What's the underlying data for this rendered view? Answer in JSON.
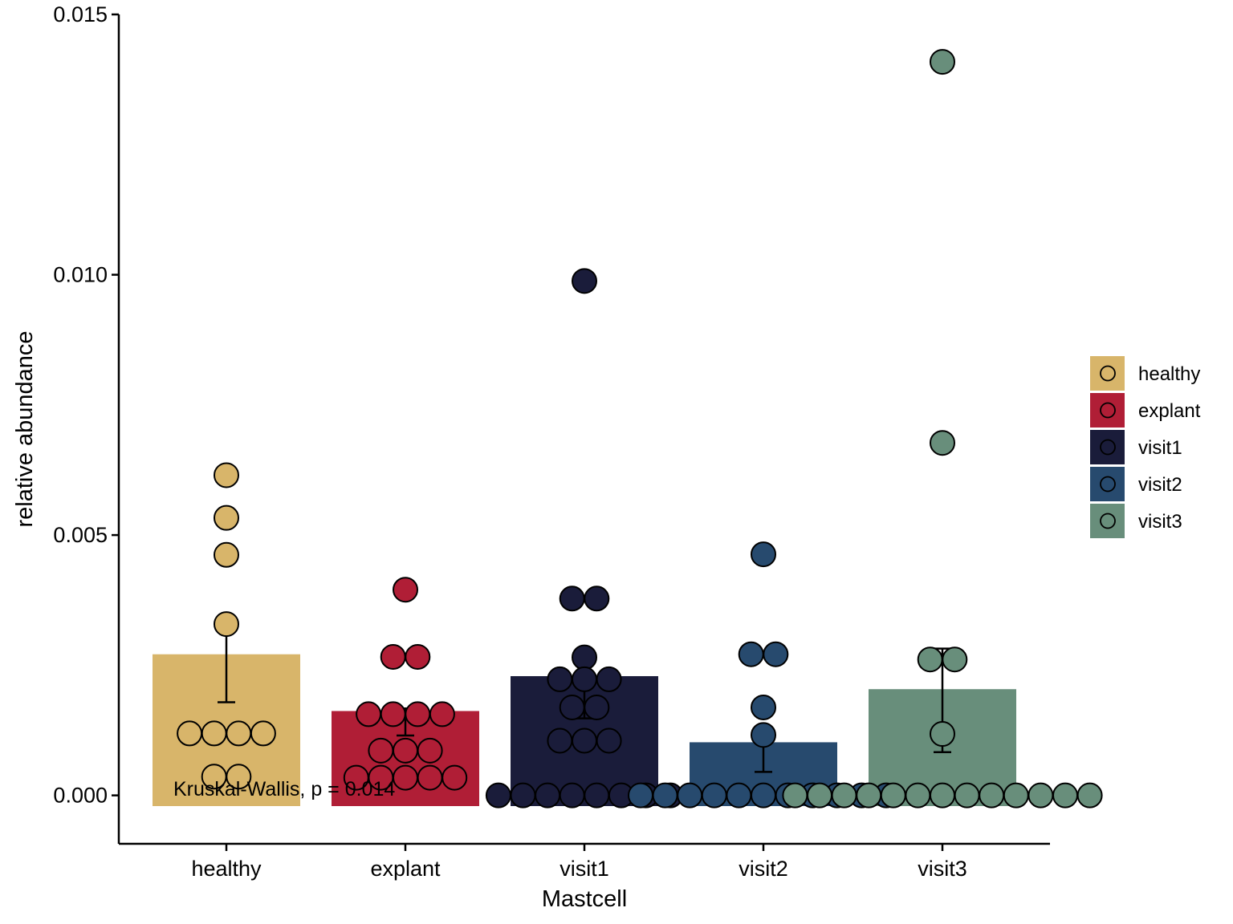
{
  "chart_data": {
    "type": "bar",
    "title": "",
    "xlabel": "Mastcell",
    "ylabel": "relative abundance",
    "categories": [
      "healthy",
      "explant",
      "visit1",
      "visit2",
      "visit3"
    ],
    "colors": [
      "#D8B56A",
      "#B01E36",
      "#1A1C3A",
      "#274A6E",
      "#688E7B"
    ],
    "values": [
      0.00271,
      0.00162,
      0.00229,
      0.00102,
      0.00204
    ],
    "errors": [
      [
        0.00179,
        0.00316
      ],
      [
        0.00115,
        0.00167
      ],
      [
        0.00148,
        0.00267
      ],
      [
        0.00045,
        0.00117
      ],
      [
        0.00083,
        0.00282
      ]
    ],
    "points": [
      [
        0.00615,
        0.00533,
        0.00462,
        0.00329,
        0.00119,
        0.00119,
        0.00119,
        0.00119,
        0.00036,
        0.00036
      ],
      [
        0.00395,
        0.00266,
        0.00266,
        0.00156,
        0.00156,
        0.00156,
        0.00156,
        0.00086,
        0.00086,
        0.00086,
        0.00034,
        0.00034,
        0.00034,
        0.00034,
        0.00034
      ],
      [
        0.00988,
        0.00378,
        0.00378,
        0.00265,
        0.00223,
        0.00223,
        0.00223,
        0.00169,
        0.00169,
        0.00105,
        0.00105,
        0.00105,
        0,
        0,
        0,
        0,
        0,
        0,
        0,
        0
      ],
      [
        0.00463,
        0.00271,
        0.00271,
        0.00169,
        0.00116,
        0,
        0,
        0,
        0,
        0,
        0,
        0,
        0,
        0,
        0,
        0
      ],
      [
        0.01409,
        0.00677,
        0.00261,
        0.00261,
        0.00118,
        0,
        0,
        0,
        0,
        0,
        0,
        0,
        0,
        0,
        0,
        0,
        0,
        0
      ]
    ],
    "ylim": [
      -0.00093,
      0.015
    ],
    "yticks": [
      "0.000",
      "0.005",
      "0.010",
      "0.015"
    ],
    "ytick_values": [
      0,
      0.005,
      0.01,
      0.015
    ],
    "legend": {
      "position": "right",
      "entries": [
        "healthy",
        "explant",
        "visit1",
        "visit2",
        "visit3"
      ]
    },
    "annotation": "Kruskal-Wallis, p = 0.014",
    "grid": false
  }
}
